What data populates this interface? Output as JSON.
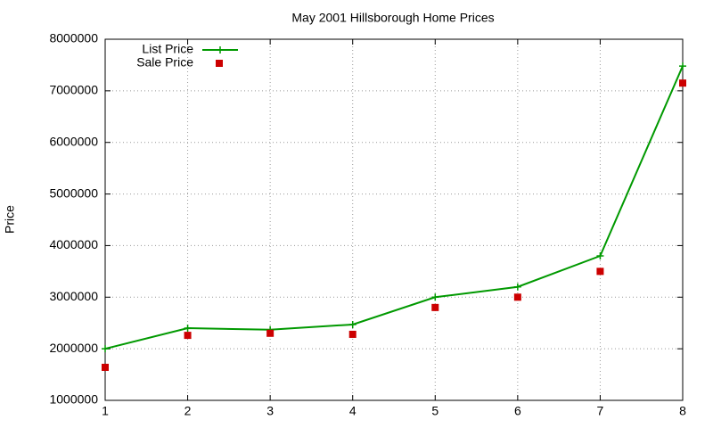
{
  "chart_data": {
    "type": "line",
    "title": "May 2001 Hillsborough Home Prices",
    "y_label": "Price",
    "x": [
      1,
      2,
      3,
      4,
      5,
      6,
      7,
      8
    ],
    "series": [
      {
        "name": "List Price",
        "color": "#009900",
        "style": "linespoints",
        "values": [
          2000000,
          2400000,
          2370000,
          2470000,
          3000000,
          3200000,
          3800000,
          7480000
        ]
      },
      {
        "name": "Sale Price",
        "color": "#cc0000",
        "style": "points",
        "values": [
          1640000,
          2260000,
          2300000,
          2280000,
          2800000,
          3000000,
          3500000,
          7150000
        ]
      }
    ],
    "xlim": [
      1,
      8
    ],
    "xticks": [
      1,
      2,
      3,
      4,
      5,
      6,
      7,
      8
    ],
    "ylim": [
      1000000,
      8000000
    ],
    "yticks": [
      1000000,
      2000000,
      3000000,
      4000000,
      5000000,
      6000000,
      7000000,
      8000000
    ],
    "grid": true,
    "legend": "top-left"
  }
}
